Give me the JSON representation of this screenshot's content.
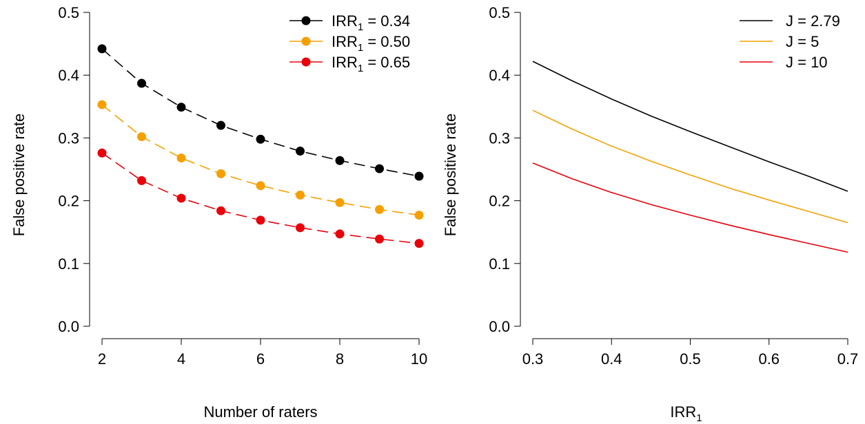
{
  "chart_data": [
    {
      "type": "line",
      "markers": true,
      "xlabel": "Number of raters",
      "ylabel": "False positive rate",
      "xlim": [
        2,
        10
      ],
      "ylim": [
        0,
        0.5
      ],
      "xticks": [
        "2",
        "4",
        "6",
        "8",
        "10"
      ],
      "yticks": [
        "0.0",
        "0.1",
        "0.2",
        "0.3",
        "0.4",
        "0.5"
      ],
      "x": [
        2,
        3,
        4,
        5,
        6,
        7,
        8,
        9,
        10
      ],
      "line_style": "dashed",
      "legend_position": "top-right",
      "series": [
        {
          "name": "IRR",
          "name_sub": "1",
          "name_suffix": " = 0.34",
          "color": "#000000",
          "values": [
            0.442,
            0.387,
            0.349,
            0.32,
            0.298,
            0.279,
            0.264,
            0.251,
            0.239
          ]
        },
        {
          "name": "IRR",
          "name_sub": "1",
          "name_suffix": " = 0.50",
          "color": "#F5A000",
          "values": [
            0.353,
            0.302,
            0.268,
            0.243,
            0.224,
            0.209,
            0.197,
            0.186,
            0.177
          ]
        },
        {
          "name": "IRR",
          "name_sub": "1",
          "name_suffix": " = 0.65",
          "color": "#E8000B",
          "values": [
            0.276,
            0.232,
            0.204,
            0.184,
            0.169,
            0.157,
            0.147,
            0.139,
            0.132
          ]
        }
      ]
    },
    {
      "type": "line",
      "markers": false,
      "xlabel": "IRR",
      "xlabel_sub": "1",
      "ylabel": "False positive rate",
      "xlim": [
        0.3,
        0.7
      ],
      "ylim": [
        0,
        0.5
      ],
      "xticks": [
        "0.3",
        "0.4",
        "0.5",
        "0.6",
        "0.7"
      ],
      "yticks": [
        "0.0",
        "0.1",
        "0.2",
        "0.3",
        "0.4",
        "0.5"
      ],
      "x": [
        0.3,
        0.35,
        0.4,
        0.45,
        0.5,
        0.55,
        0.6,
        0.65,
        0.7
      ],
      "line_style": "solid",
      "legend_position": "top-right",
      "series": [
        {
          "name": "J = 2.79",
          "color": "#000000",
          "values": [
            0.422,
            0.391,
            0.362,
            0.335,
            0.31,
            0.286,
            0.262,
            0.239,
            0.215
          ]
        },
        {
          "name": "J = 5",
          "color": "#F5A000",
          "values": [
            0.344,
            0.314,
            0.287,
            0.263,
            0.241,
            0.22,
            0.201,
            0.183,
            0.165
          ]
        },
        {
          "name": "J = 10",
          "color": "#E8000B",
          "values": [
            0.26,
            0.235,
            0.213,
            0.194,
            0.177,
            0.161,
            0.146,
            0.132,
            0.118
          ]
        }
      ]
    }
  ]
}
